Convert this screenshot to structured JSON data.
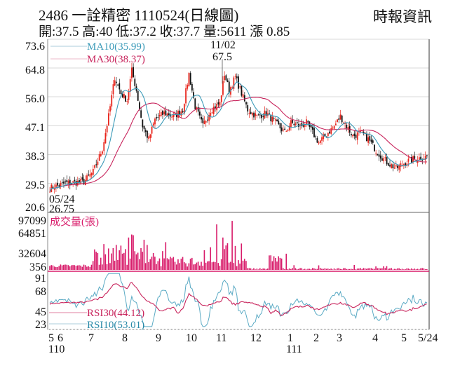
{
  "header": {
    "title": "2486  一詮精密 1110524(日線圖)",
    "source": "時報資訊",
    "ohlc": "開:37.5 高:40 低:37.2 收:37.7 量:5611 漲 0.85"
  },
  "colors": {
    "up": "#e8251c",
    "down": "#111111",
    "ma10": "#3a9ab8",
    "ma30": "#c8245c",
    "volume": "#d81b6a",
    "rsi30": "#c8245c",
    "rsi10": "#5aaac4",
    "grid": "#d8d8d8"
  },
  "price_panel": {
    "yticks": [
      "73.6",
      "64.8",
      "56.0",
      "47.1",
      "38.3",
      "29.5",
      "20.6"
    ],
    "legend": {
      "ma10": "MA10(35.99)",
      "ma30": "MA30(38.37)"
    },
    "annotations": {
      "high_date": "11/02",
      "high_value": "67.5",
      "low_date": "05/24",
      "low_value": "26.75"
    }
  },
  "volume_panel": {
    "yticks": [
      "97099",
      "64851",
      "32604",
      "356"
    ],
    "label": "成交量(張)"
  },
  "rsi_panel": {
    "yticks": [
      "91",
      "68",
      "45",
      "23"
    ],
    "legend": {
      "rsi30": "RSI30(44.12)",
      "rsi10": "RSI10(53.01)"
    }
  },
  "xaxis": {
    "labels": [
      "5",
      "6",
      "7",
      "8",
      "9",
      "10",
      "11",
      "12",
      "1",
      "2",
      "3",
      "4",
      "5",
      "5/24"
    ],
    "year_labels": {
      "y110": "110",
      "y111": "111"
    }
  },
  "chart_data": {
    "type": "candlestick",
    "title": "2486 一詮精密 1110524(日線圖)",
    "period": "2021/05/24 - 2022/05/24 (daily)",
    "last_bar": {
      "open": 37.5,
      "high": 40,
      "low": 37.2,
      "close": 37.7,
      "volume": 5611,
      "change": 0.85
    },
    "price_ylim": [
      20.6,
      73.6
    ],
    "price_yticks": [
      73.6,
      64.8,
      56.0,
      47.1,
      38.3,
      29.5,
      20.6
    ],
    "extremes": {
      "high": {
        "date": "11/02",
        "value": 67.5
      },
      "low": {
        "date": "05/24",
        "value": 26.75
      }
    },
    "indicators": {
      "MA10": 35.99,
      "MA30": 38.37,
      "RSI30": 44.12,
      "RSI10": 53.01
    },
    "monthly_close_approx": {
      "categories": [
        "2021-05",
        "2021-06",
        "2021-07",
        "2021-08",
        "2021-09",
        "2021-10",
        "2021-11",
        "2021-12",
        "2022-01",
        "2022-02",
        "2022-03",
        "2022-04",
        "2022-05"
      ],
      "values": [
        29,
        31,
        56,
        58,
        49,
        54,
        60,
        51,
        46,
        47,
        42,
        43,
        37.7
      ]
    },
    "volume_yticks": [
      97099,
      64851,
      32604,
      356
    ],
    "volume_ylabel": "成交量(張)",
    "rsi_yticks": [
      91,
      68,
      45,
      23
    ],
    "xlabels": [
      "5",
      "6",
      "7",
      "8",
      "9",
      "10",
      "11",
      "12",
      "1",
      "2",
      "3",
      "4",
      "5",
      "5/24"
    ],
    "year_markers": [
      "110",
      "111"
    ]
  }
}
